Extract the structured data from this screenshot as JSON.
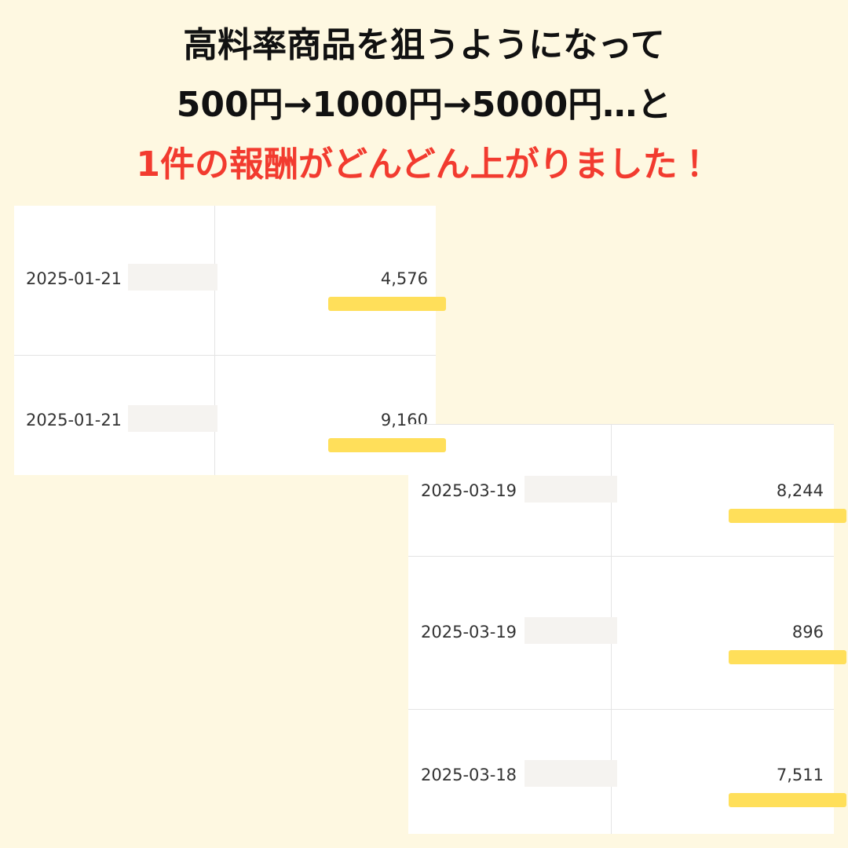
{
  "header": {
    "lines": [
      "高料率商品を狙うようになって",
      "500円→1000円→5000円…と",
      "1件の報酬がどんどん上がりました！"
    ]
  },
  "table1": {
    "rows": [
      [
        "2025-01-21",
        "4,576"
      ],
      [
        "2025-01-21",
        "9,160"
      ]
    ]
  },
  "table2": {
    "rows": [
      [
        "2025-03-19",
        "8,244"
      ],
      [
        "2025-03-19",
        "896"
      ],
      [
        "2025-03-18",
        "7,511"
      ]
    ]
  }
}
